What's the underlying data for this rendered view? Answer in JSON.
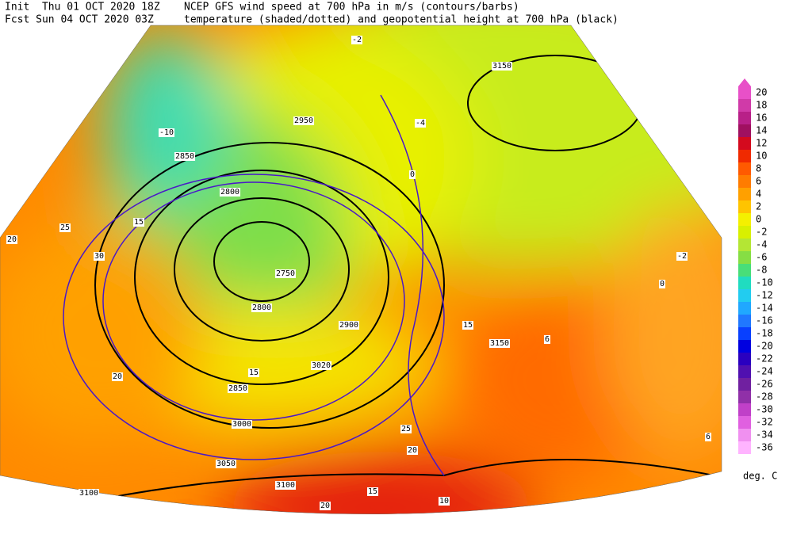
{
  "header": {
    "init_label": "Init  Thu 01 OCT 2020 18Z",
    "fcst_label": "Fcst Sun 04 OCT 2020 03Z",
    "title_line1": "NCEP GFS wind speed at 700 hPa in m/s (contours/barbs)",
    "title_line2": "temperature (shaded/dotted) and geopotential height at 700 hPa (black)"
  },
  "colorbar": {
    "labels": [
      20,
      18,
      16,
      14,
      12,
      10,
      8,
      6,
      4,
      2,
      0,
      -2,
      -4,
      -6,
      -8,
      -10,
      -12,
      -14,
      -16,
      -18,
      -20,
      -22,
      -24,
      -26,
      -28,
      -30,
      -32,
      -34,
      -36
    ],
    "colors": [
      "#e850c8",
      "#d03aa8",
      "#b82088",
      "#a01060",
      "#d40a1e",
      "#f02a00",
      "#ff5a00",
      "#ff7c00",
      "#ffa000",
      "#ffc400",
      "#f4f000",
      "#d8f000",
      "#b4e634",
      "#86de44",
      "#48de78",
      "#20dcc0",
      "#22ccf0",
      "#20a8ff",
      "#2078ff",
      "#0840ff",
      "#0000e0",
      "#2a00c0",
      "#5010b0",
      "#7020a0",
      "#9030a8",
      "#c040c8",
      "#e060e0",
      "#f090f0",
      "#ffb4ff"
    ],
    "unit": "deg. C"
  },
  "map": {
    "labels": [
      "2850",
      "2950",
      "3150",
      "2800",
      "2750",
      "2800",
      "2900",
      "3020",
      "3000",
      "3050",
      "3100",
      "3100",
      "3150",
      "2850",
      "15",
      "20",
      "25",
      "30",
      "15",
      "20",
      "25",
      "15",
      "20",
      "-2",
      "-4",
      "-10",
      "0",
      "6",
      "10",
      "-2",
      "0",
      "6",
      "15",
      "20"
    ]
  }
}
